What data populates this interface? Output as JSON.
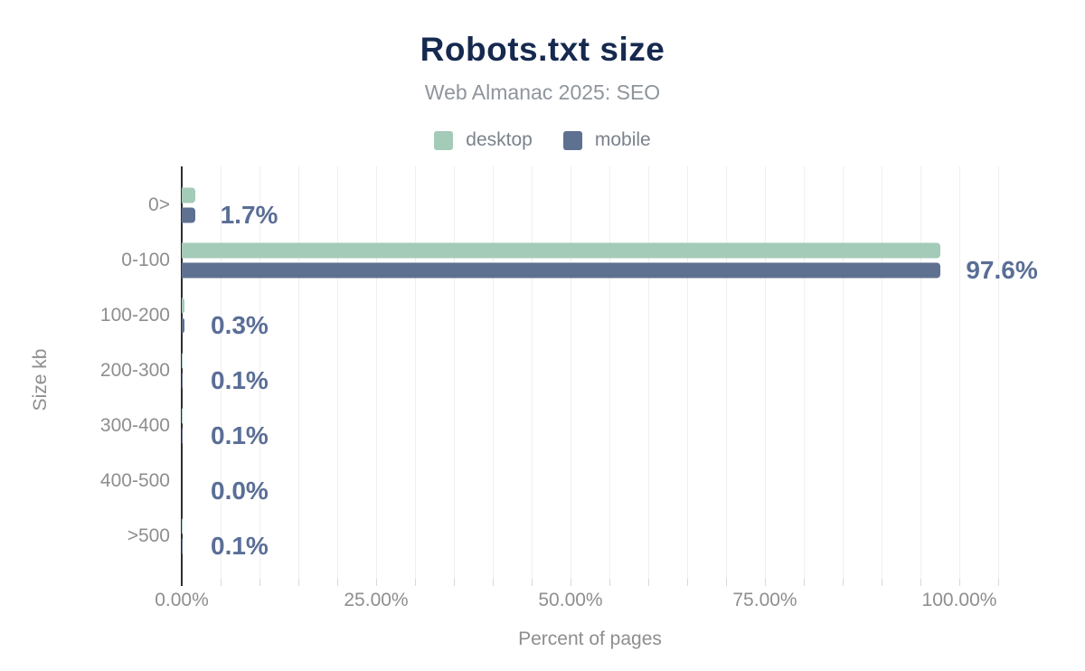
{
  "header": {
    "title": "Robots.txt size",
    "subtitle": "Web Almanac 2025: SEO"
  },
  "legend": [
    {
      "label": "desktop",
      "color": "#a4cab8"
    },
    {
      "label": "mobile",
      "color": "#5f7190"
    }
  ],
  "colors": {
    "title": "#16294f",
    "subtitle": "#8f959c",
    "desktop": "#a4cab8",
    "mobile": "#5f7190",
    "data_label": "#5a6e96",
    "axis_text": "#8e8e8e",
    "gridline": "#efefef",
    "axis_line": "#2e2e2e"
  },
  "chart_data": {
    "type": "bar",
    "orientation": "horizontal",
    "title": "Robots.txt size",
    "subtitle": "Web Almanac 2025: SEO",
    "categories": [
      "0>",
      "0-100",
      "100-200",
      "200-300",
      "300-400",
      "400-500",
      ">500"
    ],
    "series": [
      {
        "name": "desktop",
        "color": "#a4cab8",
        "values": [
          1.7,
          97.6,
          0.3,
          0.1,
          0.1,
          0.0,
          0.1
        ]
      },
      {
        "name": "mobile",
        "color": "#5f7190",
        "values": [
          1.7,
          97.6,
          0.3,
          0.1,
          0.1,
          0.0,
          0.1
        ]
      }
    ],
    "bar_labels": [
      "1.7%",
      "97.6%",
      "0.3%",
      "0.1%",
      "0.1%",
      "0.0%",
      "0.1%"
    ],
    "xlabel": "Percent of pages",
    "ylabel": "Size kb",
    "x_ticks": [
      "0.00%",
      "25.00%",
      "50.00%",
      "75.00%",
      "100.00%"
    ],
    "x_tick_values": [
      0,
      25,
      50,
      75,
      100
    ],
    "xlim": [
      0,
      100
    ],
    "grid": "minor vertical gridlines every 5%, legend top center"
  }
}
